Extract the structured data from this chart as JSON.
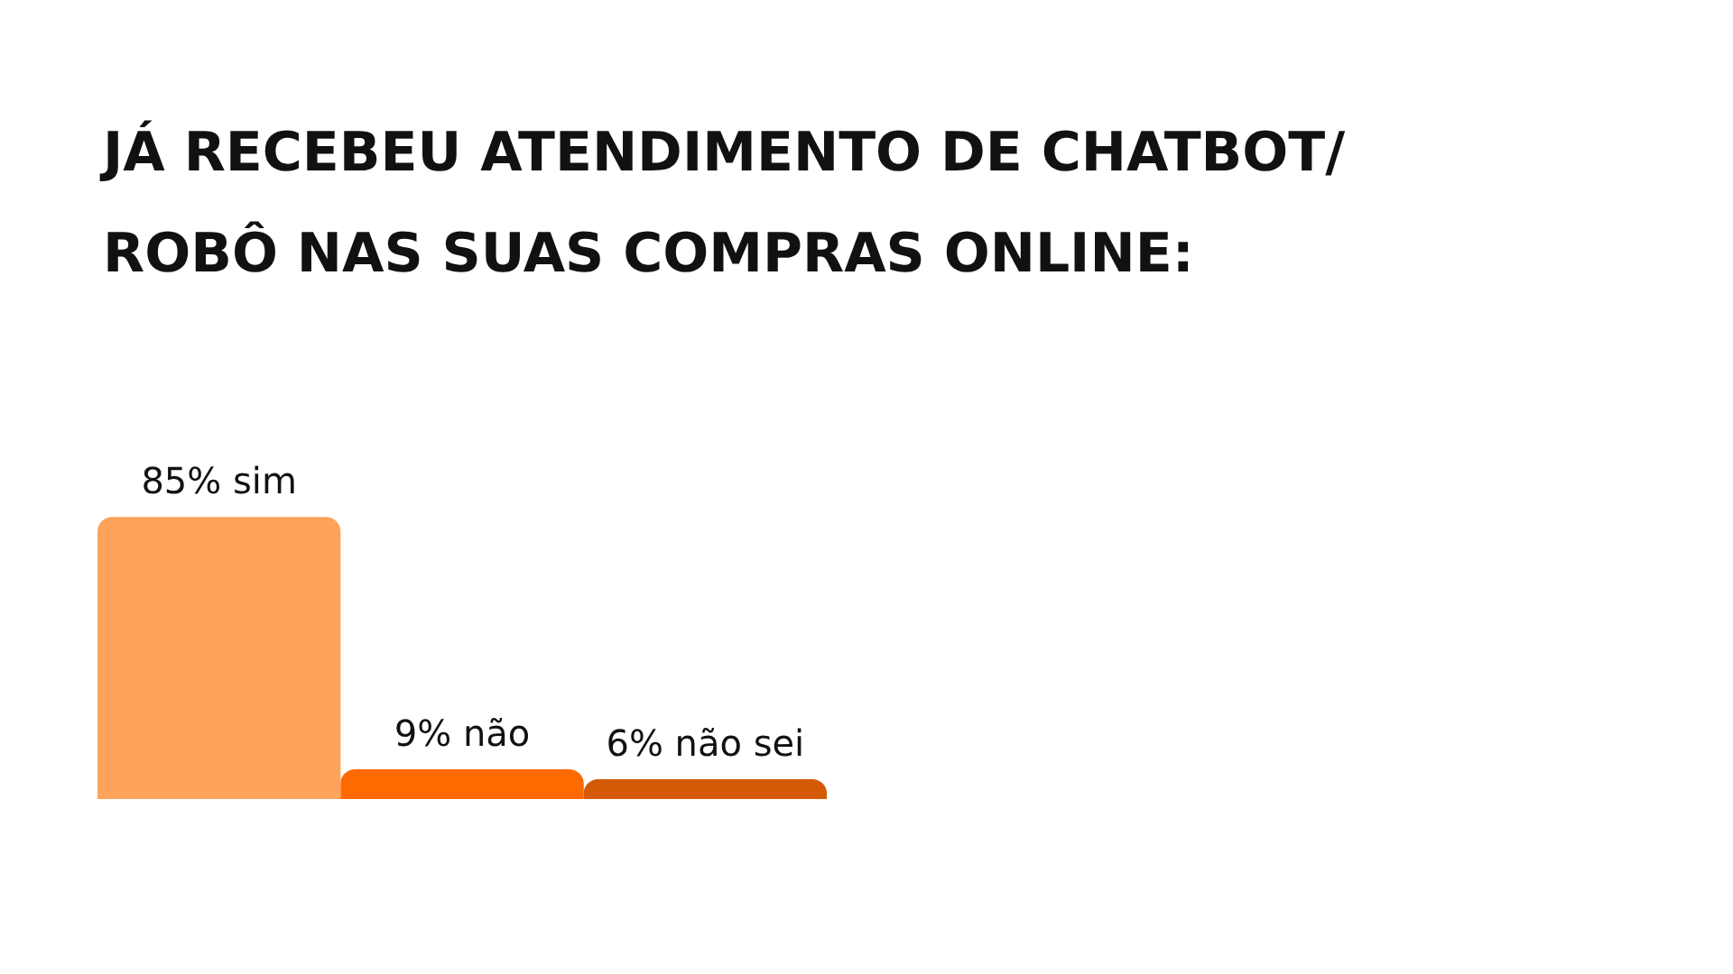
{
  "chart_data": {
    "type": "bar",
    "title": "JÁ RECEBEU ATENDIMENTO DE CHATBOT/\nROBÔ NAS SUAS COMPRAS ONLINE:",
    "categories": [
      null,
      null,
      null
    ],
    "values": [
      85,
      9,
      6
    ],
    "colors": [
      "#fea35b",
      "#ff6a00",
      "#d45a08"
    ],
    "value_labels": [
      "85% sim",
      "9% não",
      "6% não sei"
    ],
    "tick_labels": false,
    "grid": false
  }
}
